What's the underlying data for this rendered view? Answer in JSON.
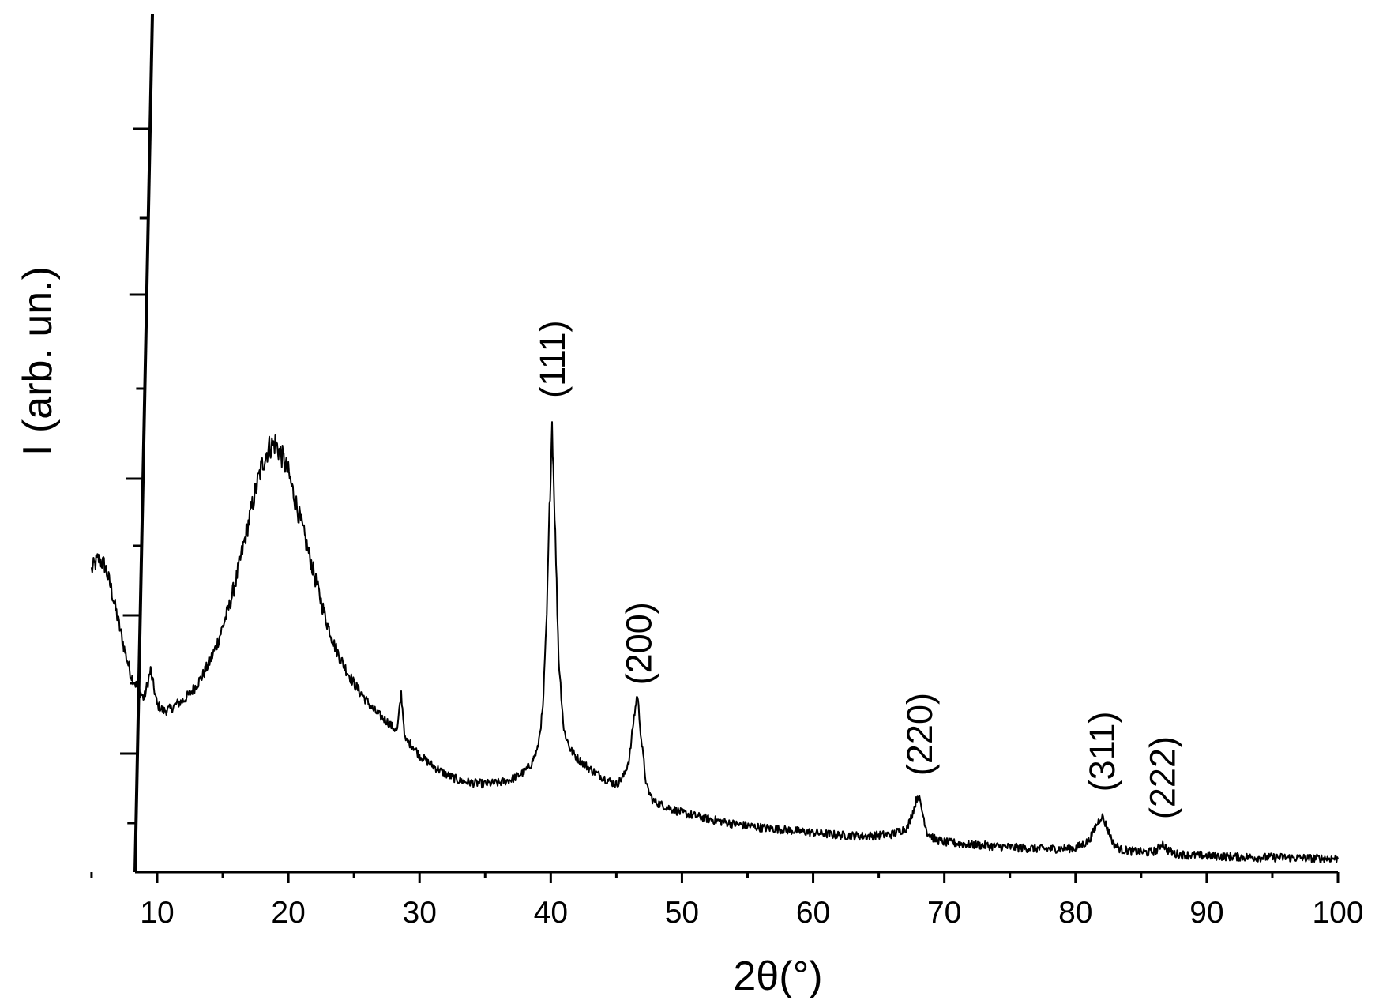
{
  "chart_data": {
    "type": "line",
    "title": "",
    "xlabel": "2θ(°)",
    "ylabel": "I (arb. un.)",
    "xlim": [
      3.8,
      100
    ],
    "ylim": [
      0,
      100
    ],
    "y_tick_labels_shown": false,
    "x_ticks": [
      10,
      20,
      30,
      40,
      50,
      60,
      70,
      80,
      90,
      100
    ],
    "x_tick_labels": [
      "10",
      "20",
      "30",
      "40",
      "50",
      "60",
      "70",
      "80",
      "90",
      "100"
    ],
    "series": [
      {
        "color": "#000000",
        "x": [
          5,
          5.5,
          6,
          6.5,
          7,
          7.5,
          8,
          8.5,
          9,
          9.5,
          10,
          10.5,
          11,
          11.5,
          12,
          12.5,
          13,
          13.5,
          14,
          14.5,
          15,
          15.5,
          16,
          16.5,
          17,
          17.5,
          18,
          18.5,
          19,
          19.5,
          20,
          20.5,
          21,
          21.5,
          22,
          22.5,
          23,
          23.5,
          24,
          24.5,
          25,
          25.5,
          26,
          26.5,
          27,
          27.5,
          28,
          28.3,
          28.6,
          28.9,
          29.5,
          30,
          31,
          32,
          33,
          34,
          35,
          36,
          37,
          38,
          38.5,
          39,
          39.4,
          39.7,
          39.9,
          40.1,
          40.3,
          40.6,
          41,
          41.5,
          42,
          43,
          44,
          45,
          45.6,
          46,
          46.3,
          46.6,
          46.9,
          47.3,
          47.8,
          48.5,
          50,
          52,
          54,
          56,
          58,
          60,
          62,
          64,
          66,
          67.2,
          67.7,
          68,
          68.3,
          68.7,
          69.3,
          70,
          72,
          74,
          76,
          78,
          80,
          81,
          81.6,
          82,
          82.4,
          82.9,
          83.5,
          84.5,
          85.5,
          86.2,
          86.6,
          87,
          87.6,
          88.5,
          90,
          92,
          94,
          96,
          98,
          100
        ],
        "y": [
          35.2,
          36.5,
          35.8,
          33,
          29.5,
          26,
          23,
          21.5,
          20.2,
          23.5,
          19.5,
          18.8,
          19,
          19.6,
          20,
          20.8,
          21.8,
          23,
          24.5,
          26.3,
          28.6,
          31,
          34,
          37.5,
          41,
          44.5,
          47.5,
          49.5,
          50,
          48.5,
          46.5,
          43.5,
          40.5,
          37.5,
          34.5,
          31.5,
          28.8,
          26.5,
          24.8,
          23.3,
          22,
          20.9,
          19.9,
          18.9,
          18.2,
          17.6,
          16.8,
          16.5,
          20.8,
          15.4,
          14.7,
          13.6,
          12.4,
          11.4,
          10.7,
          10.4,
          10.3,
          10.4,
          10.8,
          11.7,
          12.6,
          14.3,
          19,
          30,
          42,
          52.5,
          42,
          25,
          16.5,
          14.3,
          13.3,
          12,
          11,
          10.2,
          11.3,
          13.3,
          17.5,
          20.8,
          15.5,
          10,
          8.3,
          7.8,
          6.9,
          6.2,
          5.6,
          5.2,
          4.9,
          4.6,
          4.3,
          4.2,
          4.4,
          5.2,
          7.5,
          9.1,
          7.2,
          4.6,
          3.8,
          3.5,
          3.2,
          3,
          2.8,
          2.7,
          2.8,
          3.6,
          5.5,
          6.6,
          5.2,
          3.3,
          2.6,
          2.4,
          2.3,
          2.5,
          3.4,
          2.6,
          2.1,
          2,
          1.9,
          1.8,
          1.7,
          1.7,
          1.6,
          1.6
        ]
      }
    ],
    "annotations": [
      {
        "text": "(111)",
        "x": 40.1
      },
      {
        "text": "(200)",
        "x": 46.7
      },
      {
        "text": "(220)",
        "x": 68.1
      },
      {
        "text": "(311)",
        "x": 82
      },
      {
        "text": "(222)",
        "x": 86.6
      }
    ]
  }
}
